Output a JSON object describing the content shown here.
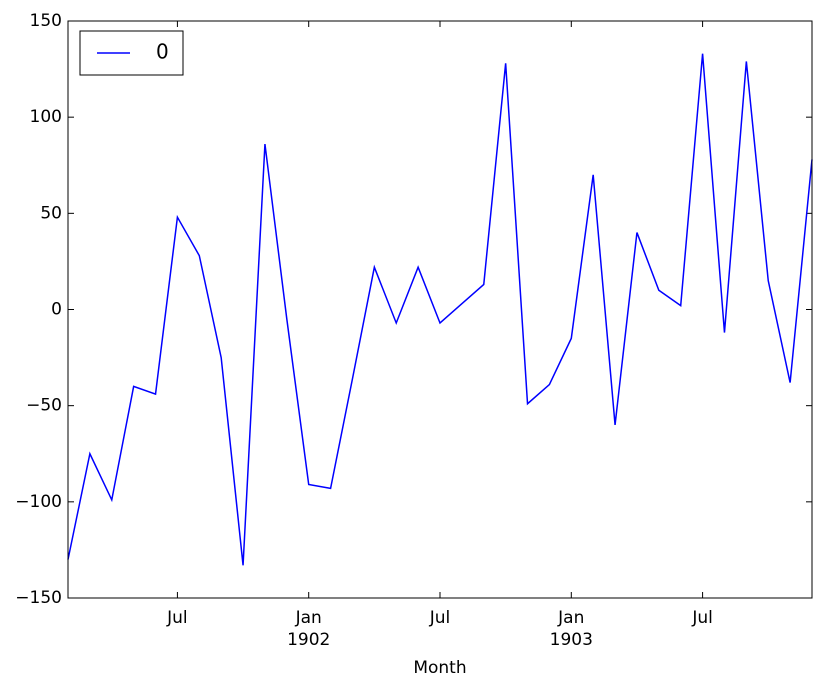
{
  "chart_data": {
    "type": "line",
    "x": [
      "1901-02",
      "1901-03",
      "1901-04",
      "1901-05",
      "1901-06",
      "1901-07",
      "1901-08",
      "1901-09",
      "1901-10",
      "1901-11",
      "1901-12",
      "1902-01",
      "1902-02",
      "1902-03",
      "1902-04",
      "1902-05",
      "1902-06",
      "1902-07",
      "1902-08",
      "1902-09",
      "1902-10",
      "1902-11",
      "1902-12",
      "1903-01",
      "1903-02",
      "1903-03",
      "1903-04",
      "1903-05",
      "1903-06",
      "1903-07",
      "1903-08",
      "1903-09",
      "1903-10",
      "1903-11",
      "1903-12"
    ],
    "series": [
      {
        "name": "0",
        "color": "#0000ff",
        "values": [
          -130,
          -75,
          -99,
          -40,
          -44,
          48,
          28,
          -25,
          -133,
          86,
          -5,
          -91,
          -93,
          -36,
          22,
          -7,
          22,
          -7,
          3,
          13,
          128,
          -49,
          -39,
          -15,
          70,
          -60,
          40,
          10,
          2,
          133,
          -12,
          129,
          15,
          -38,
          78
        ]
      }
    ],
    "xlim": [
      "1901-02",
      "1903-12"
    ],
    "xticks": [
      {
        "value": "1901-07",
        "label": "Jul"
      },
      {
        "value": "1902-01",
        "label": "Jan",
        "year": "1902"
      },
      {
        "value": "1902-07",
        "label": "Jul"
      },
      {
        "value": "1903-01",
        "label": "Jan",
        "year": "1903"
      },
      {
        "value": "1903-07",
        "label": "Jul"
      }
    ],
    "ylim": [
      -150,
      150
    ],
    "yticks": [
      {
        "value": -150,
        "label": "−150"
      },
      {
        "value": -100,
        "label": "−100"
      },
      {
        "value": -50,
        "label": "−50"
      },
      0,
      50,
      100,
      150
    ],
    "xlabel": "Month",
    "legend": "upper left",
    "grid": false
  }
}
